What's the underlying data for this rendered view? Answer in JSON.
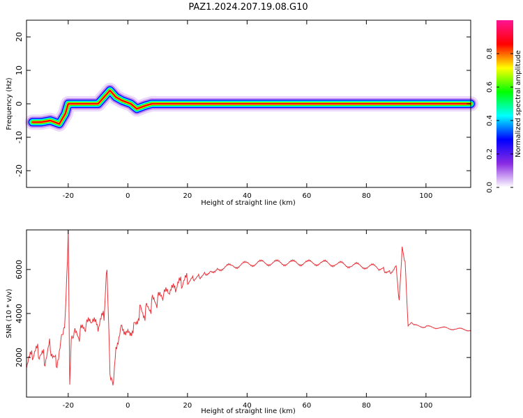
{
  "title": "PAZ1.2024.207.19.08.G10",
  "chart_data": [
    {
      "type": "heatmap",
      "xlabel": "Height of straight line (km)",
      "ylabel": "Frequency (Hz)",
      "xlim": [
        -34,
        115
      ],
      "ylim": [
        -25,
        25
      ],
      "xticks": [
        -20,
        0,
        20,
        40,
        60,
        80,
        100
      ],
      "yticks": [
        -20,
        -10,
        0,
        10,
        20
      ],
      "colorbar": {
        "label": "Normalized spectral amplitude",
        "range": [
          0,
          1
        ],
        "ticks": [
          "0.0",
          "0.2",
          "0.4",
          "0.6",
          "0.8"
        ],
        "colormap": [
          "#ffffff",
          "#8a2be2",
          "#0000ff",
          "#00ffff",
          "#00ff00",
          "#ffff00",
          "#ff0000",
          "#ff1493"
        ]
      },
      "ridge": [
        {
          "x": -32,
          "y": -5.5
        },
        {
          "x": -29,
          "y": -5.5
        },
        {
          "x": -26,
          "y": -5
        },
        {
          "x": -23,
          "y": -6
        },
        {
          "x": -21,
          "y": -3
        },
        {
          "x": -20,
          "y": 0
        },
        {
          "x": -10,
          "y": 0
        },
        {
          "x": -8,
          "y": 2
        },
        {
          "x": -6,
          "y": 4
        },
        {
          "x": -4,
          "y": 2
        },
        {
          "x": -2,
          "y": 1
        },
        {
          "x": 1,
          "y": 0
        },
        {
          "x": 3,
          "y": -1.5
        },
        {
          "x": 6,
          "y": -0.5
        },
        {
          "x": 8,
          "y": 0
        },
        {
          "x": 115,
          "y": 0
        }
      ]
    },
    {
      "type": "line",
      "xlabel": "Height of straight line (km)",
      "ylabel": "SNR (10 * v/v)",
      "xlim": [
        -34,
        115
      ],
      "ylim": [
        200,
        7800
      ],
      "xticks": [
        -20,
        0,
        20,
        40,
        60,
        80,
        100
      ],
      "yticks": [
        2000,
        4000,
        6000
      ],
      "color": "#e8333a",
      "series": [
        {
          "x": [
            -34,
            -32,
            -30,
            -28,
            -26,
            -24,
            -22,
            -21,
            -20,
            -19.5,
            -19,
            -18,
            -16,
            -14,
            -12,
            -10,
            -8,
            -7,
            -6,
            -5,
            -4,
            -2,
            0,
            2,
            4,
            6,
            8,
            10,
            12,
            14,
            16,
            18,
            20,
            22,
            24,
            26,
            28,
            30,
            35,
            40,
            45,
            50,
            55,
            60,
            65,
            70,
            75,
            80,
            84,
            86,
            88,
            90,
            91,
            92,
            93,
            94,
            95,
            96,
            100,
            105,
            110,
            115
          ],
          "y": [
            1500,
            2000,
            2200,
            1900,
            2600,
            1800,
            3200,
            4000,
            7800,
            600,
            2600,
            2900,
            3000,
            3300,
            3500,
            3200,
            3800,
            6200,
            1500,
            1000,
            2700,
            3600,
            3300,
            3500,
            4200,
            4100,
            4400,
            4500,
            4700,
            4800,
            5000,
            5300,
            5400,
            5600,
            5700,
            5850,
            5950,
            6050,
            6150,
            6250,
            6300,
            6300,
            6300,
            6300,
            6300,
            6250,
            6200,
            6150,
            6100,
            6000,
            5900,
            6200,
            4600,
            7000,
            6300,
            3400,
            3550,
            3450,
            3400,
            3350,
            3300,
            3250
          ]
        }
      ]
    }
  ]
}
